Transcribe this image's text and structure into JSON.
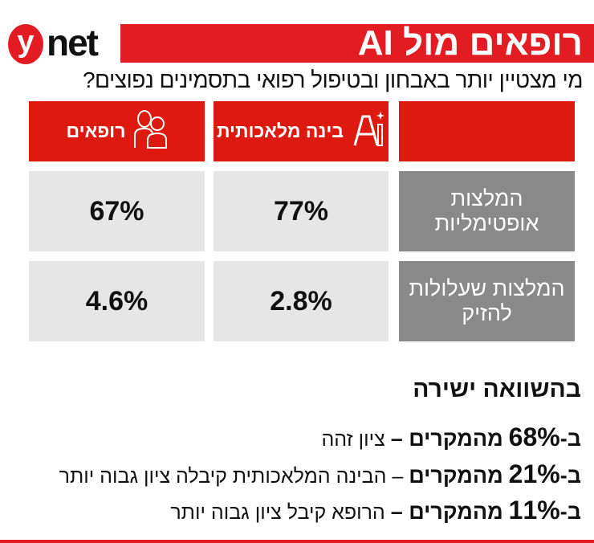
{
  "logo": {
    "letter": "y",
    "word": "net"
  },
  "header": {
    "title": "רופאים מול AI",
    "subtitle": "מי מצטיין יותר באבחון ובטיפול רפואי בתסמינים נפוצים?"
  },
  "columns": [
    {
      "label": "רופאים",
      "icon": "doctors-icon"
    },
    {
      "label": "בינה מלאכותית",
      "icon": "ai-sparkle-icon"
    }
  ],
  "rows": [
    {
      "label": "המלצות אופטימליות",
      "doctors": "67%",
      "ai": "77%"
    },
    {
      "label": "המלצות שעלולות להזיק",
      "doctors": "4.6%",
      "ai": "2.8%"
    }
  ],
  "comparison": {
    "title": "בהשוואה ישירה",
    "items": [
      {
        "prefix": "ב-",
        "pct": "68%",
        "bold": "מהמקרים –",
        "text": "ציון זהה"
      },
      {
        "prefix": "ב-",
        "pct": "21%",
        "bold": "מהמקרים",
        "text": "– הבינה המלאכותית קיבלה ציון גבוה יותר"
      },
      {
        "prefix": "ב-",
        "pct": "11%",
        "bold": "מהמקרים –",
        "text": "הרופא קיבל ציון גבוה יותר"
      }
    ]
  },
  "colors": {
    "red": "#e31b23",
    "header_red": "#de1a10",
    "gray_label": "#898989",
    "gray_cell": "#e6e6e6"
  }
}
